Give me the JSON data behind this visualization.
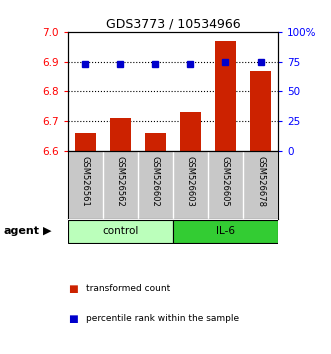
{
  "title": "GDS3773 / 10534966",
  "categories": [
    "GSM526561",
    "GSM526562",
    "GSM526602",
    "GSM526603",
    "GSM526605",
    "GSM526678"
  ],
  "bar_values": [
    6.66,
    6.71,
    6.66,
    6.73,
    6.97,
    6.87
  ],
  "percentile_values": [
    73,
    73,
    73,
    73,
    75,
    75
  ],
  "ylim_left": [
    6.6,
    7.0
  ],
  "ylim_right": [
    0,
    100
  ],
  "yticks_left": [
    6.6,
    6.7,
    6.8,
    6.9,
    7.0
  ],
  "yticks_right": [
    0,
    25,
    50,
    75,
    100
  ],
  "bar_color": "#cc2200",
  "dot_color": "#0000cc",
  "groups": [
    {
      "label": "control",
      "indices": [
        0,
        1,
        2
      ],
      "color": "#bbffbb"
    },
    {
      "label": "IL-6",
      "indices": [
        3,
        4,
        5
      ],
      "color": "#33cc33"
    }
  ],
  "agent_label": "agent",
  "legend_bar_label": "transformed count",
  "legend_dot_label": "percentile rank within the sample",
  "background_color": "#ffffff",
  "plot_area_bg": "#ffffff",
  "tick_area_bg": "#c8c8c8",
  "grid_dotted_ticks": [
    6.7,
    6.8,
    6.9
  ]
}
